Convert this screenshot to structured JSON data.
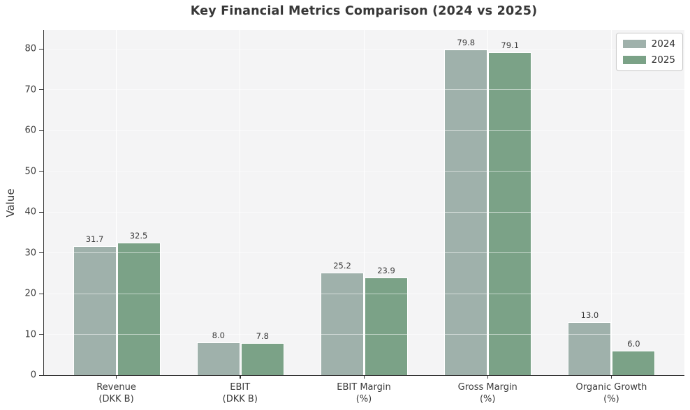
{
  "title": "Key Financial Metrics Comparison (2024 vs 2025)",
  "chart_data": {
    "type": "bar",
    "title": "Key Financial Metrics Comparison (2024 vs 2025)",
    "xlabel": "",
    "ylabel": "Value",
    "categories": [
      {
        "line1": "Revenue",
        "line2": "(DKK B)"
      },
      {
        "line1": "EBIT",
        "line2": "(DKK B)"
      },
      {
        "line1": "EBIT Margin",
        "line2": "(%)"
      },
      {
        "line1": "Gross Margin",
        "line2": "(%)"
      },
      {
        "line1": "Organic Growth",
        "line2": "(%)"
      }
    ],
    "series": [
      {
        "name": "2024",
        "color": "#9fb1ab",
        "values": [
          31.7,
          8.0,
          25.2,
          79.8,
          13.0
        ],
        "value_labels": [
          "31.7",
          "8.0",
          "25.2",
          "79.8",
          "13.0"
        ]
      },
      {
        "name": "2025",
        "color": "#7ba287",
        "values": [
          32.5,
          7.8,
          23.9,
          79.1,
          6.0
        ],
        "value_labels": [
          "32.5",
          "7.8",
          "23.9",
          "79.1",
          "6.0"
        ]
      }
    ],
    "ylim": [
      0,
      84.6
    ],
    "yticks": [
      0,
      10,
      20,
      30,
      40,
      50,
      60,
      70,
      80
    ],
    "grid": true,
    "plot_background": "#f4f4f5",
    "grid_color": "#ffffff",
    "legend_position": "upper right"
  },
  "legend": {
    "items": [
      {
        "label": "2024",
        "color": "#9fb1ab"
      },
      {
        "label": "2025",
        "color": "#7ba287"
      }
    ]
  }
}
